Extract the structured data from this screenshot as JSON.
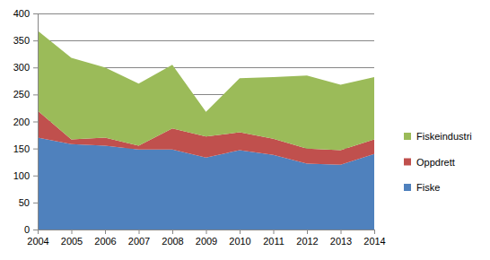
{
  "chart_data": {
    "type": "area",
    "stacked": true,
    "grid": true,
    "legend": "right",
    "categories": [
      "2004",
      "2005",
      "2006",
      "2007",
      "2008",
      "2009",
      "2010",
      "2011",
      "2012",
      "2013",
      "2014"
    ],
    "ylim": [
      0,
      400
    ],
    "yticks": [
      0,
      50,
      100,
      150,
      200,
      250,
      300,
      350,
      400
    ],
    "series": [
      {
        "name": "Fiske",
        "color": "#4f81bd",
        "values": [
          170,
          158,
          155,
          148,
          148,
          133,
          147,
          138,
          122,
          120,
          140
        ]
      },
      {
        "name": "Oppdrett",
        "color": "#c0504d",
        "values": [
          50,
          9,
          15,
          7,
          39,
          39,
          33,
          30,
          28,
          27,
          27
        ]
      },
      {
        "name": "Fiskeindustri",
        "color": "#9bbb59",
        "values": [
          148,
          151,
          130,
          115,
          118,
          46,
          100,
          114,
          135,
          121,
          115
        ]
      }
    ]
  }
}
